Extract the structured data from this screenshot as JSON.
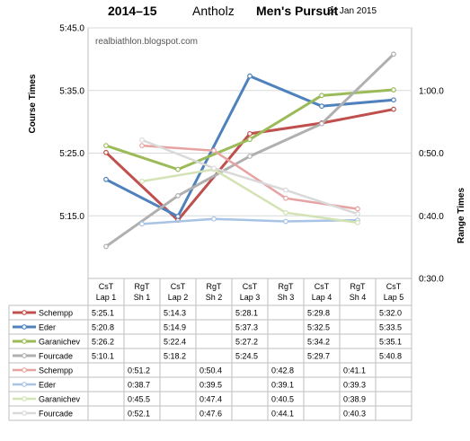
{
  "header": {
    "season": "2014–15",
    "venue": "Antholz",
    "race": "Men's Pursuit",
    "date": "24 Jan 2015"
  },
  "watermark": "realbiathlon.blogspot.com",
  "chart_data": {
    "type": "line",
    "categories": [
      "CsT Lap 1",
      "RgT Sh 1",
      "CsT Lap 2",
      "RgT Sh 2",
      "CsT Lap 3",
      "RgT Sh 3",
      "CsT Lap 4",
      "RgT Sh 4",
      "CsT Lap 5"
    ],
    "category_lines": [
      [
        "CsT",
        "Lap 1"
      ],
      [
        "RgT",
        "Sh 1"
      ],
      [
        "CsT",
        "Lap 2"
      ],
      [
        "RgT",
        "Sh 2"
      ],
      [
        "CsT",
        "Lap 3"
      ],
      [
        "RgT",
        "Sh 3"
      ],
      [
        "CsT",
        "Lap 4"
      ],
      [
        "RgT",
        "Sh 4"
      ],
      [
        "CsT",
        "Lap 5"
      ]
    ],
    "ylabel_left": "Course Times",
    "ylabel_right": "Range Times",
    "left_axis": {
      "ticks": [
        "5:15.0",
        "5:25.0",
        "5:35.0",
        "5:45.0"
      ],
      "tick_values": [
        315,
        325,
        335,
        345
      ],
      "range": [
        305,
        345
      ]
    },
    "right_axis": {
      "ticks": [
        "0:30.0",
        "0:40.0",
        "0:50.0",
        "1:00.0"
      ],
      "tick_values": [
        30,
        40,
        50,
        60
      ],
      "range": [
        30,
        70
      ]
    },
    "grid": true,
    "series": [
      {
        "name": "Schempp",
        "axis": "left",
        "color": "#c0504d",
        "values": [
          325.1,
          null,
          314.3,
          null,
          328.1,
          null,
          329.8,
          null,
          332.0
        ],
        "labels": [
          "5:25.1",
          "",
          "5:14.3",
          "",
          "5:28.1",
          "",
          "5:29.8",
          "",
          "5:32.0"
        ]
      },
      {
        "name": "Eder",
        "axis": "left",
        "color": "#4f81bd",
        "values": [
          320.8,
          null,
          314.9,
          null,
          337.3,
          null,
          332.5,
          null,
          333.5
        ],
        "labels": [
          "5:20.8",
          "",
          "5:14.9",
          "",
          "5:37.3",
          "",
          "5:32.5",
          "",
          "5:33.5"
        ]
      },
      {
        "name": "Garanichev",
        "axis": "left",
        "color": "#9bbb59",
        "values": [
          326.2,
          null,
          322.4,
          null,
          327.2,
          null,
          334.2,
          null,
          335.1
        ],
        "labels": [
          "5:26.2",
          "",
          "5:22.4",
          "",
          "5:27.2",
          "",
          "5:34.2",
          "",
          "5:35.1"
        ]
      },
      {
        "name": "Fourcade",
        "axis": "left",
        "color": "#b0b0b0",
        "values": [
          310.1,
          null,
          318.2,
          null,
          324.5,
          null,
          329.7,
          null,
          340.8
        ],
        "labels": [
          "5:10.1",
          "",
          "5:18.2",
          "",
          "5:24.5",
          "",
          "5:29.7",
          "",
          "5:40.8"
        ]
      },
      {
        "name": "Schempp",
        "axis": "right",
        "color": "#e6a3a1",
        "values": [
          null,
          51.2,
          null,
          50.4,
          null,
          42.8,
          null,
          41.1,
          null
        ],
        "labels": [
          "",
          "0:51.2",
          "",
          "0:50.4",
          "",
          "0:42.8",
          "",
          "0:41.1",
          ""
        ]
      },
      {
        "name": "Eder",
        "axis": "right",
        "color": "#a8c3e4",
        "values": [
          null,
          38.7,
          null,
          39.5,
          null,
          39.1,
          null,
          39.3,
          null
        ],
        "labels": [
          "",
          "0:38.7",
          "",
          "0:39.5",
          "",
          "0:39.1",
          "",
          "0:39.3",
          ""
        ]
      },
      {
        "name": "Garanichev",
        "axis": "right",
        "color": "#d4e3b5",
        "values": [
          null,
          45.5,
          null,
          47.4,
          null,
          40.5,
          null,
          38.9,
          null
        ],
        "labels": [
          "",
          "0:45.5",
          "",
          "0:47.4",
          "",
          "0:40.5",
          "",
          "0:38.9",
          ""
        ]
      },
      {
        "name": "Fourcade",
        "axis": "right",
        "color": "#d9d9d9",
        "values": [
          null,
          52.1,
          null,
          47.6,
          null,
          44.1,
          null,
          40.3,
          null
        ],
        "labels": [
          "",
          "0:52.1",
          "",
          "0:47.6",
          "",
          "0:44.1",
          "",
          "0:40.3",
          ""
        ]
      }
    ]
  }
}
